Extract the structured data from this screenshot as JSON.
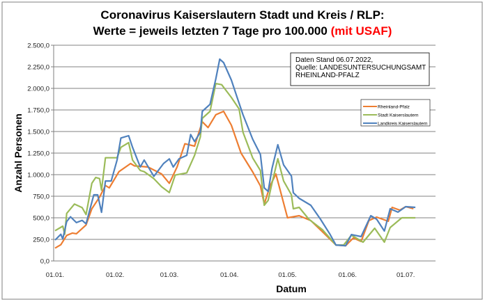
{
  "chart_data": {
    "type": "line",
    "title_line1": "Coronavirus Kaiserslautern Stadt und Kreis / RLP:",
    "title_line2_main": "Werte = jeweils letzten 7 Tage pro 100.000 ",
    "title_line2_highlight": "(mit USAF)",
    "highlight_color": "#ff0000",
    "xlabel": "Datum",
    "ylabel": "Anzahl Personen",
    "ylim": [
      0,
      2500
    ],
    "yticks": [
      "0,0",
      "250,0",
      "500,0",
      "750,0",
      "1.000,0",
      "1.250,0",
      "1.500,0",
      "1.750,0",
      "2.000,0",
      "2.250,0",
      "2.500,0"
    ],
    "xticks": [
      "01.01.",
      "01.02.",
      "01.03.",
      "01.04.",
      "01.05.",
      "01.06.",
      "01.07."
    ],
    "grid": true,
    "legend_position": "right",
    "annotation": [
      "Daten Stand 06.07.2022,",
      "Quelle: LANDESUNTERSUCHUNGSAMT",
      "RHEINLAND-PFALZ"
    ],
    "series": [
      {
        "name": "Rheinland-Pfalz",
        "color": "#ed7d31",
        "points": [
          [
            "01.01.",
            148
          ],
          [
            "04.01.",
            188
          ],
          [
            "07.01.",
            296
          ],
          [
            "10.01.",
            323
          ],
          [
            "12.01.",
            315
          ],
          [
            "17.01.",
            417
          ],
          [
            "20.01.",
            605
          ],
          [
            "24.01.",
            740
          ],
          [
            "27.01.",
            874
          ],
          [
            "29.01.",
            847
          ],
          [
            "03.02.",
            1035
          ],
          [
            "09.02.",
            1129
          ],
          [
            "11.02.",
            1102
          ],
          [
            "18.02.",
            1089
          ],
          [
            "25.02.",
            1008
          ],
          [
            "01.03.",
            900
          ],
          [
            "05.03.",
            1089
          ],
          [
            "09.03.",
            1358
          ],
          [
            "14.03.",
            1331
          ],
          [
            "18.03.",
            1613
          ],
          [
            "21.03.",
            1546
          ],
          [
            "25.03.",
            1694
          ],
          [
            "29.03.",
            1734
          ],
          [
            "02.04.",
            1573
          ],
          [
            "07.04.",
            1250
          ],
          [
            "13.04.",
            1032
          ],
          [
            "17.04.",
            870
          ],
          [
            "19.04.",
            660
          ],
          [
            "22.04.",
            870
          ],
          [
            "25.04.",
            1008
          ],
          [
            "01.05.",
            500
          ],
          [
            "07.05.",
            524
          ],
          [
            "13.05.",
            468
          ],
          [
            "19.05.",
            339
          ],
          [
            "26.05.",
            185
          ],
          [
            "31.05.",
            177
          ],
          [
            "04.06.",
            266
          ],
          [
            "08.06.",
            226
          ],
          [
            "12.06.",
            468
          ],
          [
            "16.06.",
            508
          ],
          [
            "22.06.",
            460
          ],
          [
            "24.06.",
            621
          ],
          [
            "28.06.",
            589
          ],
          [
            "01.07.",
            629
          ],
          [
            "05.07.",
            605
          ]
        ]
      },
      {
        "name": "Stadt Kaiserslautern",
        "color": "#9bbb59",
        "points": [
          [
            "01.01.",
            350
          ],
          [
            "05.01.",
            403
          ],
          [
            "06.01.",
            309
          ],
          [
            "07.01.",
            551
          ],
          [
            "11.01.",
            659
          ],
          [
            "15.01.",
            618
          ],
          [
            "17.01.",
            538
          ],
          [
            "20.01.",
            900
          ],
          [
            "22.01.",
            968
          ],
          [
            "24.01.",
            954
          ],
          [
            "25.01.",
            820
          ],
          [
            "27.01.",
            1196
          ],
          [
            "29.01.",
            1196
          ],
          [
            "02.02.",
            1196
          ],
          [
            "04.02.",
            1317
          ],
          [
            "08.02.",
            1371
          ],
          [
            "10.02.",
            1169
          ],
          [
            "14.02.",
            1048
          ],
          [
            "16.02.",
            1035
          ],
          [
            "21.02.",
            954
          ],
          [
            "25.02.",
            860
          ],
          [
            "01.03.",
            793
          ],
          [
            "04.03.",
            995
          ],
          [
            "10.03.",
            1021
          ],
          [
            "14.03.",
            1223
          ],
          [
            "17.03.",
            1438
          ],
          [
            "18.03.",
            1653
          ],
          [
            "22.03.",
            1734
          ],
          [
            "25.03.",
            2056
          ],
          [
            "28.03.",
            2043
          ],
          [
            "02.04.",
            1895
          ],
          [
            "06.04.",
            1761
          ],
          [
            "08.04.",
            1492
          ],
          [
            "13.04.",
            1194
          ],
          [
            "17.04.",
            1048
          ],
          [
            "19.04.",
            645
          ],
          [
            "21.04.",
            702
          ],
          [
            "23.04.",
            903
          ],
          [
            "26.04.",
            1185
          ],
          [
            "29.04.",
            927
          ],
          [
            "03.05.",
            766
          ],
          [
            "04.05.",
            605
          ],
          [
            "07.05.",
            621
          ],
          [
            "12.05.",
            484
          ],
          [
            "19.05.",
            363
          ],
          [
            "26.05.",
            185
          ],
          [
            "30.05.",
            185
          ],
          [
            "03.06.",
            298
          ],
          [
            "09.06.",
            218
          ],
          [
            "15.06.",
            379
          ],
          [
            "20.06.",
            218
          ],
          [
            "23.06.",
            387
          ],
          [
            "29.06.",
            500
          ],
          [
            "06.07.",
            500
          ]
        ]
      },
      {
        "name": "Landkreis Kaiserslautern",
        "color": "#4f81bd",
        "points": [
          [
            "01.01.",
            242
          ],
          [
            "04.01.",
            309
          ],
          [
            "05.01.",
            255
          ],
          [
            "07.01.",
            457
          ],
          [
            "09.01.",
            511
          ],
          [
            "12.01.",
            444
          ],
          [
            "15.01.",
            470
          ],
          [
            "17.01.",
            430
          ],
          [
            "21.01.",
            766
          ],
          [
            "23.01.",
            766
          ],
          [
            "25.01.",
            564
          ],
          [
            "27.01.",
            927
          ],
          [
            "30.01.",
            927
          ],
          [
            "02.02.",
            1169
          ],
          [
            "04.02.",
            1425
          ],
          [
            "08.02.",
            1452
          ],
          [
            "10.02.",
            1317
          ],
          [
            "14.02.",
            1089
          ],
          [
            "16.02.",
            1169
          ],
          [
            "21.02.",
            981
          ],
          [
            "26.02.",
            1129
          ],
          [
            "01.03.",
            1183
          ],
          [
            "03.03.",
            1089
          ],
          [
            "06.03.",
            1183
          ],
          [
            "10.03.",
            1223
          ],
          [
            "12.03.",
            1465
          ],
          [
            "14.03.",
            1384
          ],
          [
            "17.03.",
            1492
          ],
          [
            "18.03.",
            1734
          ],
          [
            "22.03.",
            1815
          ],
          [
            "25.03.",
            2110
          ],
          [
            "27.03.",
            2339
          ],
          [
            "29.03.",
            2298
          ],
          [
            "02.04.",
            2097
          ],
          [
            "05.04.",
            1895
          ],
          [
            "08.04.",
            1694
          ],
          [
            "13.04.",
            1411
          ],
          [
            "17.04.",
            1234
          ],
          [
            "19.04.",
            847
          ],
          [
            "21.04.",
            806
          ],
          [
            "23.04.",
            1073
          ],
          [
            "26.04.",
            1347
          ],
          [
            "29.04.",
            1113
          ],
          [
            "03.05.",
            984
          ],
          [
            "04.05.",
            790
          ],
          [
            "07.05.",
            726
          ],
          [
            "13.05.",
            645
          ],
          [
            "18.05.",
            484
          ],
          [
            "23.05.",
            306
          ],
          [
            "26.05.",
            185
          ],
          [
            "31.05.",
            177
          ],
          [
            "03.06.",
            306
          ],
          [
            "08.06.",
            282
          ],
          [
            "13.06.",
            524
          ],
          [
            "16.06.",
            484
          ],
          [
            "20.06.",
            347
          ],
          [
            "23.06.",
            605
          ],
          [
            "27.06.",
            565
          ],
          [
            "01.07.",
            629
          ],
          [
            "06.07.",
            621
          ]
        ]
      }
    ]
  }
}
